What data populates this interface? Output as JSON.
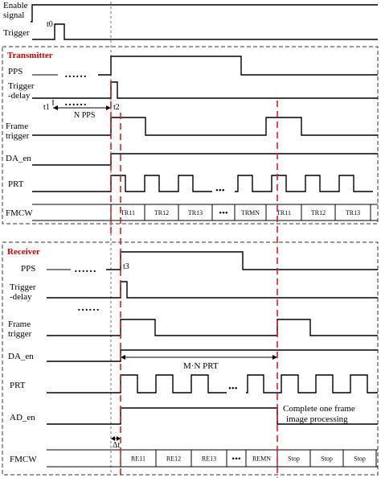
{
  "labels": {
    "enable_signal_1": "Enable",
    "enable_signal_2": "signal",
    "trigger": "Trigger",
    "t0": "t0",
    "transmitter_title": "Transmitter",
    "tx_pps": "PPS",
    "tx_trigger_delay_1": "Trigger",
    "tx_trigger_delay_2": "-delay",
    "t1": "t1",
    "t2": "t2",
    "n_pps": "N PPS",
    "tx_frame_trigger_1": "Frame",
    "tx_frame_trigger_2": "trigger",
    "tx_da_en": "DA_en",
    "tx_prt": "PRT",
    "tx_fmcw": "FMCW",
    "receiver_title": "Receiver",
    "rx_pps": "PPS",
    "t3": "t3",
    "rx_trigger_delay_1": "Trigger",
    "rx_trigger_delay_2": "-delay",
    "rx_frame_trigger_1": "Frame",
    "rx_frame_trigger_2": "trigger",
    "rx_da_en": "DA_en",
    "m_n_prt": "M·N PRT",
    "rx_prt": "PRT",
    "rx_ad_en": "AD_en",
    "complete_1": "Complete one frame",
    "complete_2": "image processing",
    "rx_fmcw": "FMCW",
    "delta_t": "Δt",
    "dots": "……",
    "dots_short": "•••"
  },
  "tx_fmcw_segments": [
    "TR11",
    "TR12",
    "TR13",
    "TRMN",
    "TR11",
    "TR12",
    "TR13"
  ],
  "rx_fmcw_segments": [
    "RE11",
    "RE12",
    "RE13",
    "REMN",
    "Stop",
    "Stop",
    "Stop"
  ],
  "colors": {
    "section_title": "#d40000",
    "marker_line": "#e41a1c"
  }
}
